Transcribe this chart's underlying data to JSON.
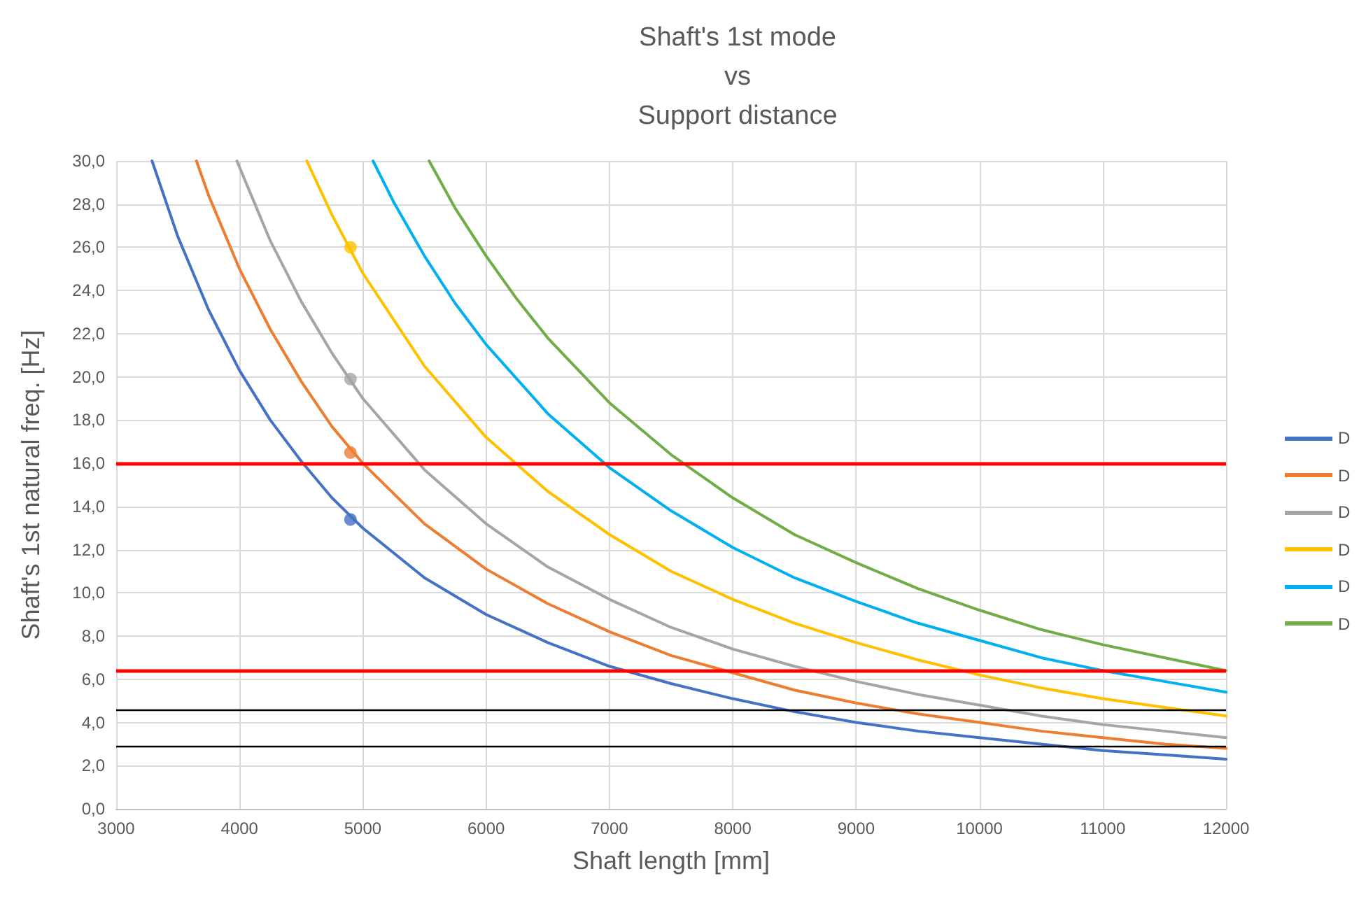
{
  "chart_data": {
    "type": "line",
    "title": "Shaft's 1st mode\nvs\nSupport distance",
    "xlabel": "Shaft length [mm]",
    "ylabel": "Shaft's 1st natural freq. [Hz]",
    "xlim": [
      3000,
      12000
    ],
    "xticks": [
      3000,
      4000,
      5000,
      6000,
      7000,
      8000,
      9000,
      10000,
      11000,
      12000
    ],
    "ylim": [
      0,
      30
    ],
    "yticks": [
      {
        "value": 0,
        "label": "0,0"
      },
      {
        "value": 2,
        "label": "2,0"
      },
      {
        "value": 4,
        "label": "4,0"
      },
      {
        "value": 6,
        "label": "6,0"
      },
      {
        "value": 8,
        "label": "8,0"
      },
      {
        "value": 10,
        "label": "10,0"
      },
      {
        "value": 12,
        "label": "12,0"
      },
      {
        "value": 14,
        "label": "14,0"
      },
      {
        "value": 16,
        "label": "16,0"
      },
      {
        "value": 18,
        "label": "18,0"
      },
      {
        "value": 20,
        "label": "20,0"
      },
      {
        "value": 22,
        "label": "22,0"
      },
      {
        "value": 24,
        "label": "24,0"
      },
      {
        "value": 26,
        "label": "26,0"
      },
      {
        "value": 28,
        "label": "28,0"
      },
      {
        "value": 30,
        "label": "30,0"
      }
    ],
    "grid": true,
    "legend": "right",
    "marker": "none",
    "line_style": "solid",
    "series": [
      {
        "name": "D",
        "color": "#4472c4",
        "x": [
          3291,
          3500,
          3750,
          4000,
          4250,
          4500,
          4750,
          5000,
          5500,
          6000,
          6500,
          7000,
          7500,
          8000,
          8500,
          9000,
          9500,
          10000,
          10500,
          11000,
          11500,
          12000
        ],
        "values": [
          30,
          26.5,
          23.1,
          20.3,
          18.0,
          16.1,
          14.4,
          13.0,
          10.7,
          9.0,
          7.7,
          6.6,
          5.8,
          5.1,
          4.5,
          4.0,
          3.6,
          3.3,
          3.0,
          2.7,
          2.5,
          2.3
        ]
      },
      {
        "name": "D",
        "color": "#ed7d31",
        "x": [
          3651,
          3750,
          4000,
          4250,
          4500,
          4750,
          5000,
          5500,
          6000,
          6500,
          7000,
          7500,
          8000,
          8500,
          9000,
          9500,
          10000,
          10500,
          11000,
          11500,
          12000
        ],
        "values": [
          30,
          28.4,
          25.0,
          22.2,
          19.8,
          17.7,
          16.0,
          13.2,
          11.1,
          9.5,
          8.2,
          7.1,
          6.3,
          5.5,
          4.9,
          4.4,
          4.0,
          3.6,
          3.3,
          3.0,
          2.8
        ]
      },
      {
        "name": "D",
        "color": "#a5a5a5",
        "x": [
          3979,
          4250,
          4500,
          4750,
          5000,
          5500,
          6000,
          6500,
          7000,
          7500,
          8000,
          8500,
          9000,
          9500,
          10000,
          10500,
          11000,
          11500,
          12000
        ],
        "values": [
          30,
          26.3,
          23.5,
          21.1,
          19.0,
          15.7,
          13.2,
          11.2,
          9.7,
          8.4,
          7.4,
          6.6,
          5.9,
          5.3,
          4.8,
          4.3,
          3.9,
          3.6,
          3.3
        ]
      },
      {
        "name": "D",
        "color": "#ffc000",
        "x": [
          4546,
          4750,
          5000,
          5500,
          6000,
          6500,
          7000,
          7500,
          8000,
          8500,
          9000,
          9500,
          10000,
          10500,
          11000,
          11500,
          12000
        ],
        "values": [
          30,
          27.5,
          24.8,
          20.5,
          17.2,
          14.7,
          12.7,
          11.0,
          9.7,
          8.6,
          7.7,
          6.9,
          6.2,
          5.6,
          5.1,
          4.7,
          4.3
        ]
      },
      {
        "name": "D",
        "color": "#00b0f0",
        "x": [
          5083,
          5250,
          5500,
          5750,
          6000,
          6500,
          7000,
          7500,
          8000,
          8500,
          9000,
          9500,
          10000,
          10500,
          11000,
          11500,
          12000
        ],
        "values": [
          30,
          28.1,
          25.6,
          23.4,
          21.5,
          18.3,
          15.8,
          13.8,
          12.1,
          10.7,
          9.6,
          8.6,
          7.8,
          7.0,
          6.4,
          5.9,
          5.4
        ]
      },
      {
        "name": "D",
        "color": "#70ad47",
        "x": [
          5538,
          5750,
          6000,
          6250,
          6500,
          7000,
          7500,
          8000,
          8500,
          9000,
          9500,
          10000,
          10500,
          11000,
          11500,
          12000
        ],
        "values": [
          30,
          27.8,
          25.6,
          23.6,
          21.8,
          18.8,
          16.4,
          14.4,
          12.7,
          11.4,
          10.2,
          9.2,
          8.3,
          7.6,
          7.0,
          6.4
        ]
      },
      {
        "type": "scatter",
        "marker": "circle",
        "x": [
          4900,
          4900,
          4900,
          4900
        ],
        "values": [
          13.4,
          16.5,
          19.9,
          26.0
        ],
        "colors": [
          "#4472c4",
          "#ed7d31",
          "#a5a5a5",
          "#ffc000"
        ]
      }
    ],
    "ref_lines": [
      {
        "axis": "y",
        "value": 16,
        "color": "#ff0000"
      },
      {
        "axis": "y",
        "value": 6.4,
        "color": "#ff0000"
      },
      {
        "axis": "y",
        "value": 4.6,
        "color": "#000000"
      },
      {
        "axis": "y",
        "value": 2.9,
        "color": "#000000"
      }
    ]
  }
}
